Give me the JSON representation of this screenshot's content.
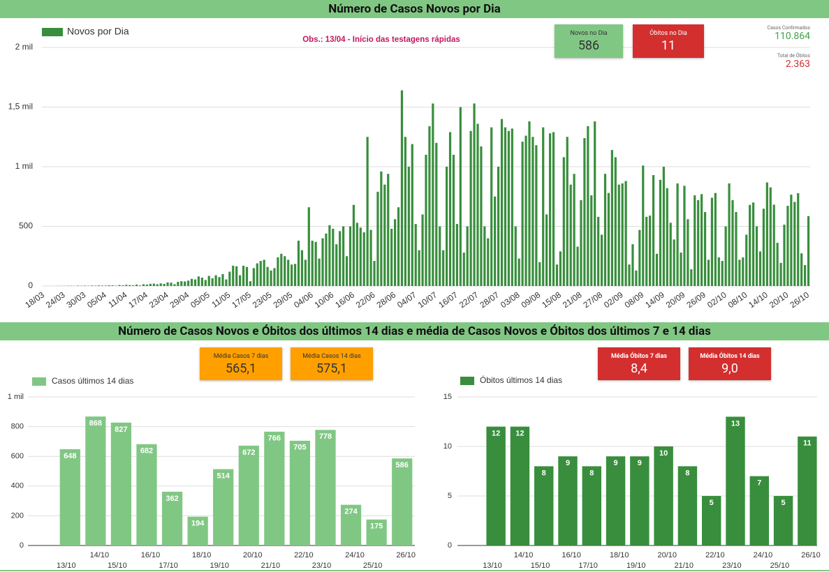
{
  "section_title": "Número de Casos Novos e Óbitos dos últimos 14 dias e média de Casos Novos e Óbitos dos últimos 7 e 14 dias",
  "kpis": {
    "novos_dia": {
      "label": "Novos no Dia",
      "value": "586"
    },
    "obitos_dia": {
      "label": "Óbitos no Dia",
      "value": "11"
    },
    "casos_confirmados": {
      "label": "Casos Confirmados",
      "value": "110.864"
    },
    "total_obitos": {
      "label": "Total de Óbitos",
      "value": "2.363"
    },
    "media_casos_7": {
      "label": "Média Casos 7 dias",
      "value": "565,1"
    },
    "media_casos_14": {
      "label": "Média Casos 14 dias",
      "value": "575,1"
    },
    "media_obitos_7": {
      "label": "Média Óbitos 7 dias",
      "value": "8,4"
    },
    "media_obitos_14": {
      "label": "Média Óbitos 14 dias",
      "value": "9,0"
    }
  },
  "chart_data": [
    {
      "type": "bar",
      "title": "Número de Casos Novos por Dia",
      "annotation": "Obs.: 13/04 - Início das testagens rápidas",
      "grid": true,
      "categories": [
        "18/03",
        null,
        null,
        null,
        null,
        null,
        "24/03",
        null,
        null,
        null,
        null,
        null,
        "30/03",
        null,
        null,
        null,
        null,
        null,
        "05/04",
        null,
        null,
        null,
        null,
        null,
        "11/04",
        null,
        null,
        null,
        null,
        null,
        "17/04",
        null,
        null,
        null,
        null,
        null,
        "23/04",
        null,
        null,
        null,
        null,
        null,
        "29/04",
        null,
        null,
        null,
        null,
        null,
        "05/05",
        null,
        null,
        null,
        null,
        null,
        "11/05",
        null,
        null,
        null,
        null,
        null,
        "17/05",
        null,
        null,
        null,
        null,
        null,
        "23/05",
        null,
        null,
        null,
        null,
        null,
        "29/05",
        null,
        null,
        null,
        null,
        null,
        "04/06",
        null,
        null,
        null,
        null,
        null,
        "10/06",
        null,
        null,
        null,
        null,
        null,
        "16/06",
        null,
        null,
        null,
        null,
        null,
        "22/06",
        null,
        null,
        null,
        null,
        null,
        "28/06",
        null,
        null,
        null,
        null,
        null,
        "04/07",
        null,
        null,
        null,
        null,
        null,
        "10/07",
        null,
        null,
        null,
        null,
        null,
        "16/07",
        null,
        null,
        null,
        null,
        null,
        "22/07",
        null,
        null,
        null,
        null,
        null,
        "28/07",
        null,
        null,
        null,
        null,
        null,
        "03/08",
        null,
        null,
        null,
        null,
        null,
        "09/08",
        null,
        null,
        null,
        null,
        null,
        "15/08",
        null,
        null,
        null,
        null,
        null,
        "21/08",
        null,
        null,
        null,
        null,
        null,
        "27/08",
        null,
        null,
        null,
        null,
        null,
        "02/09",
        null,
        null,
        null,
        null,
        null,
        "08/09",
        null,
        null,
        null,
        null,
        null,
        "14/09",
        null,
        null,
        null,
        null,
        null,
        "20/09",
        null,
        null,
        null,
        null,
        null,
        "26/09",
        null,
        null,
        null,
        null,
        null,
        "02/10",
        null,
        null,
        null,
        null,
        null,
        "08/10",
        null,
        null,
        null,
        null,
        null,
        "14/10",
        null,
        null,
        null,
        null,
        null,
        "20/10",
        null,
        null,
        null,
        null,
        null,
        "26/10"
      ],
      "series": [
        {
          "name": "Novos por Dia",
          "color": "#388e3c",
          "values": [
            0,
            0,
            0,
            0,
            1,
            1,
            1,
            2,
            2,
            1,
            3,
            2,
            3,
            2,
            4,
            3,
            5,
            4,
            4,
            6,
            5,
            3,
            8,
            6,
            10,
            8,
            6,
            12,
            5,
            15,
            12,
            18,
            20,
            15,
            22,
            18,
            30,
            28,
            15,
            35,
            40,
            38,
            45,
            60,
            55,
            80,
            70,
            50,
            85,
            65,
            90,
            75,
            100,
            55,
            120,
            170,
            165,
            90,
            170,
            160,
            40,
            150,
            190,
            210,
            220,
            160,
            130,
            150,
            240,
            270,
            250,
            220,
            180,
            185,
            380,
            300,
            220,
            660,
            380,
            370,
            230,
            400,
            440,
            510,
            480,
            350,
            460,
            500,
            250,
            500,
            680,
            530,
            490,
            450,
            1250,
            470,
            210,
            790,
            960,
            850,
            940,
            480,
            560,
            660,
            1640,
            1250,
            1000,
            1190,
            520,
            300,
            600,
            1100,
            1340,
            1530,
            1200,
            500,
            300,
            1000,
            1290,
            1100,
            520,
            1500,
            280,
            500,
            1300,
            1530,
            1360,
            1170,
            500,
            400,
            1330,
            750,
            1000,
            1400,
            1330,
            1300,
            1320,
            500,
            230,
            1210,
            1260,
            1380,
            1250,
            1180,
            200,
            1330,
            600,
            1280,
            1290,
            180,
            290,
            1080,
            1250,
            850,
            940,
            330,
            720,
            1240,
            1340,
            760,
            1380,
            580,
            430,
            940,
            780,
            1140,
            1080,
            850,
            860,
            880,
            180,
            350,
            130,
            470,
            1010,
            580,
            590,
            930,
            270,
            890,
            1000,
            820,
            530,
            390,
            860,
            280,
            840,
            560,
            140,
            760,
            720,
            770,
            620,
            220,
            740,
            780,
            240,
            210,
            500,
            860,
            720,
            620,
            220,
            240,
            430,
            680,
            700,
            500,
            290,
            648,
            868,
            827,
            682,
            362,
            194,
            514,
            672,
            766,
            705,
            778,
            274,
            175,
            586
          ]
        }
      ],
      "ylim": [
        0,
        2000
      ],
      "yticks": [
        0,
        500,
        {
          "value": 1000,
          "label": "1 mil"
        },
        {
          "value": 1500,
          "label": "1,5 mil"
        },
        {
          "value": 2000,
          "label": "2 mil"
        }
      ]
    },
    {
      "type": "bar",
      "grid": true,
      "categories": [
        "13/10",
        "14/10",
        "15/10",
        "16/10",
        "17/10",
        "18/10",
        "19/10",
        "20/10",
        "21/10",
        "22/10",
        "23/10",
        "24/10",
        "25/10",
        "26/10"
      ],
      "series": [
        {
          "name": "Casos últimos 14 dias",
          "color": "#81c784",
          "values": [
            648,
            868,
            827,
            682,
            362,
            194,
            514,
            672,
            766,
            705,
            778,
            274,
            175,
            586
          ]
        }
      ],
      "ylim": [
        0,
        1000
      ],
      "yticks": [
        0,
        200,
        400,
        600,
        800,
        {
          "value": 1000,
          "label": "1 mil"
        }
      ]
    },
    {
      "type": "bar",
      "grid": true,
      "categories": [
        "13/10",
        "14/10",
        "15/10",
        "16/10",
        "17/10",
        "18/10",
        "19/10",
        "20/10",
        "21/10",
        "22/10",
        "23/10",
        "24/10",
        "25/10",
        "26/10"
      ],
      "series": [
        {
          "name": "Óbitos últimos 14 dias",
          "color": "#388e3c",
          "values": [
            12,
            12,
            8,
            9,
            8,
            9,
            9,
            10,
            8,
            5,
            13,
            7,
            5,
            11
          ]
        }
      ],
      "ylim": [
        0,
        15
      ],
      "yticks": [
        0,
        5,
        10,
        15
      ]
    }
  ]
}
